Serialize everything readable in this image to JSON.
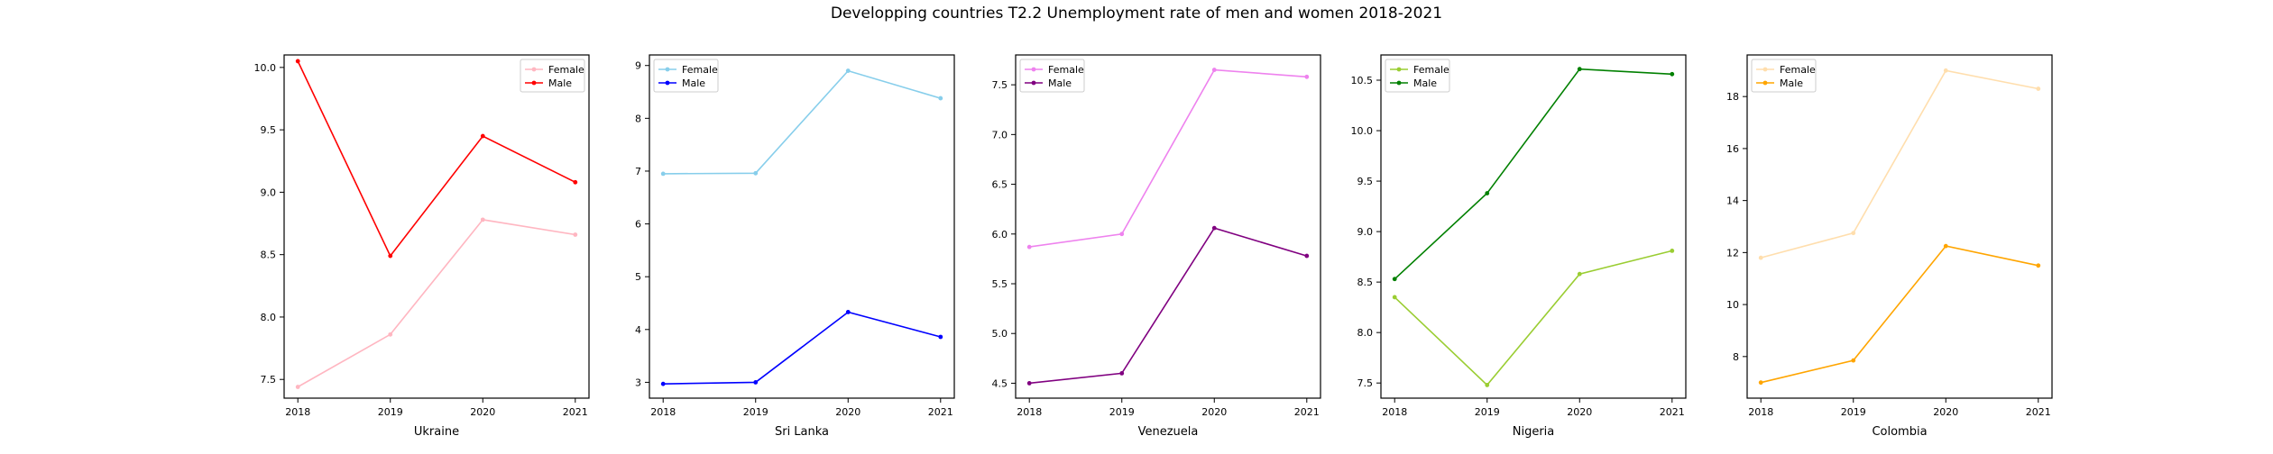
{
  "suptitle": "Developping countries T2.2 Unemployment rate of men and women 2018-2021",
  "chart_data": [
    {
      "type": "line",
      "xlabel": "Ukraine",
      "x": [
        "2018",
        "2019",
        "2020",
        "2021"
      ],
      "ylim": [
        7.35,
        10.1
      ],
      "yticks": [
        "7.5",
        "8.0",
        "8.5",
        "9.0",
        "9.5",
        "10.0"
      ],
      "legend_position": "upper right",
      "series": [
        {
          "name": "Female",
          "color": "#ffb6c1",
          "values": [
            7.44,
            7.86,
            8.78,
            8.66
          ]
        },
        {
          "name": "Male",
          "color": "#ff0000",
          "values": [
            10.05,
            8.49,
            9.45,
            9.08
          ]
        }
      ]
    },
    {
      "type": "line",
      "xlabel": "Sri Lanka",
      "x": [
        "2018",
        "2019",
        "2020",
        "2021"
      ],
      "ylim": [
        2.7,
        9.2
      ],
      "yticks": [
        "3",
        "4",
        "5",
        "6",
        "7",
        "8",
        "9"
      ],
      "legend_position": "upper left",
      "series": [
        {
          "name": "Female",
          "color": "#87ceeb",
          "values": [
            6.95,
            6.96,
            8.9,
            8.38
          ]
        },
        {
          "name": "Male",
          "color": "#0000ff",
          "values": [
            2.97,
            3.0,
            4.33,
            3.86
          ]
        }
      ]
    },
    {
      "type": "line",
      "xlabel": "Venezuela",
      "x": [
        "2018",
        "2019",
        "2020",
        "2021"
      ],
      "ylim": [
        4.35,
        7.8
      ],
      "yticks": [
        "4.5",
        "5.0",
        "5.5",
        "6.0",
        "6.5",
        "7.0",
        "7.5"
      ],
      "legend_position": "upper left",
      "series": [
        {
          "name": "Female",
          "color": "#ee82ee",
          "values": [
            5.87,
            6.0,
            7.65,
            7.58
          ]
        },
        {
          "name": "Male",
          "color": "#800080",
          "values": [
            4.5,
            4.6,
            6.06,
            5.78
          ]
        }
      ]
    },
    {
      "type": "line",
      "xlabel": "Nigeria",
      "x": [
        "2018",
        "2019",
        "2020",
        "2021"
      ],
      "ylim": [
        7.35,
        10.75
      ],
      "yticks": [
        "7.5",
        "8.0",
        "8.5",
        "9.0",
        "9.5",
        "10.0",
        "10.5"
      ],
      "legend_position": "upper left",
      "series": [
        {
          "name": "Female",
          "color": "#9acd32",
          "values": [
            8.35,
            7.48,
            8.58,
            8.81
          ]
        },
        {
          "name": "Male",
          "color": "#008000",
          "values": [
            8.53,
            9.38,
            10.61,
            10.56
          ]
        }
      ]
    },
    {
      "type": "line",
      "xlabel": "Colombia",
      "x": [
        "2018",
        "2019",
        "2020",
        "2021"
      ],
      "ylim": [
        6.4,
        19.6
      ],
      "yticks": [
        "8",
        "10",
        "12",
        "14",
        "16",
        "18"
      ],
      "legend_position": "upper left",
      "series": [
        {
          "name": "Female",
          "color": "#ffdead",
          "values": [
            11.8,
            12.75,
            19.0,
            18.3
          ]
        },
        {
          "name": "Male",
          "color": "#ffa500",
          "values": [
            7.0,
            7.85,
            12.25,
            11.5
          ]
        }
      ]
    }
  ]
}
